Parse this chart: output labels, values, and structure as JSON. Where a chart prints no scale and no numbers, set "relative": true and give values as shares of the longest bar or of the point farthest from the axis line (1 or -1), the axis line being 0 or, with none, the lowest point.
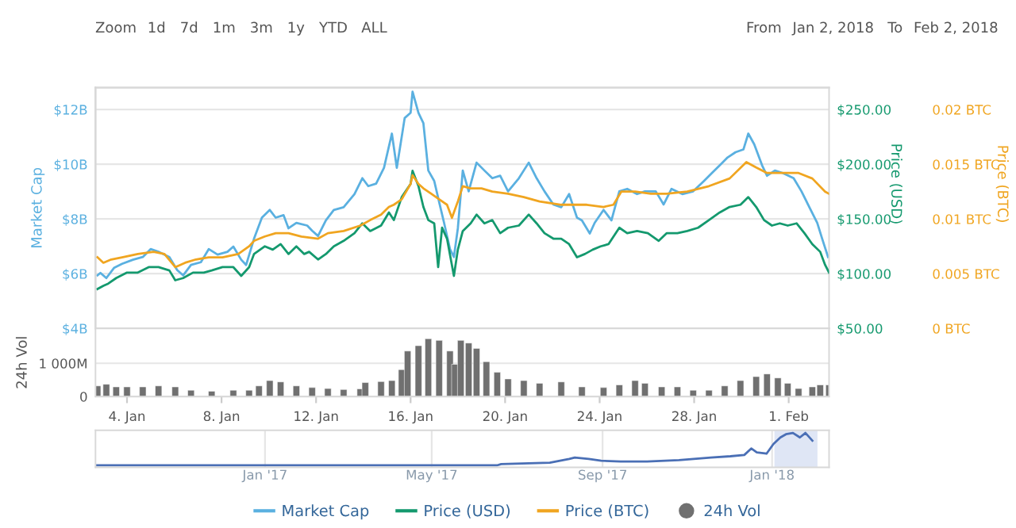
{
  "chart_data": [
    {
      "type": "line",
      "ylabel": "Market Cap",
      "y2label": "Price (USD)",
      "y3label": "Price (BTC)",
      "annotations": [
        "Zoom",
        "1d",
        "7d",
        "1m",
        "3m",
        "1y",
        "YTD",
        "ALL",
        "From",
        "Jan 2, 2018",
        "To",
        "Feb 2, 2018"
      ],
      "xlim": [
        "2018-01-02T16:00",
        "2018-02-02T17:00"
      ],
      "tick_labels": "y",
      "ylim": [
        4,
        12.8
      ],
      "yticks": [
        {
          "value": 4,
          "label": "$4B"
        },
        {
          "value": 6,
          "label": "$6B"
        },
        {
          "value": 8,
          "label": "$8B"
        },
        {
          "value": 10,
          "label": "$10B"
        },
        {
          "value": 12,
          "label": "$12B"
        }
      ],
      "y2lim": [
        50,
        270
      ],
      "y2ticks": [
        {
          "value": 50,
          "label": "$50.00"
        },
        {
          "value": 100,
          "label": "$100.00"
        },
        {
          "value": 150,
          "label": "$150.00"
        },
        {
          "value": 200,
          "label": "$200.00"
        },
        {
          "value": 250,
          "label": "$250.00"
        }
      ],
      "y3lim": [
        0,
        0.022
      ],
      "y3ticks": [
        {
          "value": 0,
          "label": "0 BTC"
        },
        {
          "value": 0.005,
          "label": "0.005 BTC"
        },
        {
          "value": 0.01,
          "label": "0.01 BTC"
        },
        {
          "value": 0.015,
          "label": "0.015 BTC"
        },
        {
          "value": 0.02,
          "label": "0.02 BTC"
        }
      ],
      "grid": "y",
      "legend": "bottom",
      "series": [
        {
          "name": "Market Cap",
          "color": "#5ab0e0",
          "axis": "y",
          "x": [
            "2018-01-02T18:00",
            "2018-01-02T21:00",
            "2018-01-03T03:00",
            "2018-01-03T11:00",
            "2018-01-03T19:00",
            "2018-01-04T06:00",
            "2018-01-04T16:00",
            "2018-01-05T00:00",
            "2018-01-05T08:00",
            "2018-01-05T19:00",
            "2018-01-06T03:00",
            "2018-01-06T09:00",
            "2018-01-06T17:00",
            "2018-01-07T03:00",
            "2018-01-07T11:00",
            "2018-01-07T20:00",
            "2018-01-08T06:00",
            "2018-01-08T12:00",
            "2018-01-08T20:00",
            "2018-01-09T01:00",
            "2018-01-09T09:00",
            "2018-01-09T17:00",
            "2018-01-10T01:00",
            "2018-01-10T07:00",
            "2018-01-10T15:00",
            "2018-01-10T20:00",
            "2018-01-11T04:00",
            "2018-01-11T15:00",
            "2018-01-11T20:00",
            "2018-01-12T02:00",
            "2018-01-12T10:00",
            "2018-01-12T18:00",
            "2018-01-13T04:00",
            "2018-01-13T15:00",
            "2018-01-13T23:00",
            "2018-01-14T05:00",
            "2018-01-14T13:00",
            "2018-01-14T21:00",
            "2018-01-15T05:00",
            "2018-01-15T10:00",
            "2018-01-15T18:00",
            "2018-01-16T00:00",
            "2018-01-16T02:00",
            "2018-01-16T08:00",
            "2018-01-16T13:00",
            "2018-01-16T18:00",
            "2018-01-17T00:00",
            "2018-01-17T05:00",
            "2018-01-17T10:00",
            "2018-01-17T16:00",
            "2018-01-17T20:00",
            "2018-01-18T00:00",
            "2018-01-18T05:00",
            "2018-01-18T11:00",
            "2018-01-18T19:00",
            "2018-01-19T03:00",
            "2018-01-19T11:00",
            "2018-01-19T19:00",
            "2018-01-20T03:00",
            "2018-01-20T14:00",
            "2018-01-21T00:00",
            "2018-01-21T08:00",
            "2018-01-21T16:00",
            "2018-01-22T01:00",
            "2018-01-22T09:00",
            "2018-01-22T17:00",
            "2018-01-23T01:00",
            "2018-01-23T06:00",
            "2018-01-23T14:00",
            "2018-01-23T19:00",
            "2018-01-24T04:00",
            "2018-01-24T12:00",
            "2018-01-24T20:00",
            "2018-01-25T04:00",
            "2018-01-25T14:00",
            "2018-01-25T22:00",
            "2018-01-26T09:00",
            "2018-01-26T17:00",
            "2018-01-27T01:00",
            "2018-01-27T12:00",
            "2018-01-27T23:00",
            "2018-01-28T10:00",
            "2018-01-28T18:00",
            "2018-01-29T02:00",
            "2018-01-29T10:00",
            "2018-01-29T18:00",
            "2018-01-30T02:00",
            "2018-01-30T07:00",
            "2018-01-30T13:00",
            "2018-01-30T21:00",
            "2018-01-31T02:00",
            "2018-01-31T10:00",
            "2018-01-31T18:00",
            "2018-02-01T05:00",
            "2018-02-01T13:00",
            "2018-02-01T21:00",
            "2018-02-02T05:00",
            "2018-02-02T10:00",
            "2018-02-02T16:00"
          ],
          "values": [
            5.94,
            6.03,
            5.84,
            6.22,
            6.36,
            6.51,
            6.61,
            6.9,
            6.8,
            6.61,
            6.13,
            5.94,
            6.32,
            6.42,
            6.9,
            6.7,
            6.8,
            6.99,
            6.51,
            6.32,
            7.28,
            8.05,
            8.33,
            8.05,
            8.14,
            7.66,
            7.86,
            7.76,
            7.57,
            7.38,
            7.95,
            8.33,
            8.43,
            8.91,
            9.49,
            9.2,
            9.29,
            9.87,
            11.12,
            9.87,
            11.69,
            11.88,
            12.65,
            11.88,
            11.5,
            9.77,
            9.39,
            8.62,
            7.86,
            6.9,
            6.61,
            7.66,
            9.77,
            9.01,
            10.06,
            9.77,
            9.49,
            9.58,
            9.01,
            9.49,
            10.06,
            9.49,
            9.01,
            8.53,
            8.43,
            8.91,
            8.05,
            7.95,
            7.47,
            7.86,
            8.33,
            7.95,
            9.01,
            9.1,
            8.91,
            9.01,
            9.01,
            8.53,
            9.1,
            8.91,
            9.01,
            9.39,
            9.68,
            9.96,
            10.25,
            10.44,
            10.54,
            11.12,
            10.73,
            9.96,
            9.58,
            9.77,
            9.68,
            9.49,
            9.01,
            8.43,
            7.86,
            7.28,
            6.61
          ]
        },
        {
          "name": "Price (USD)",
          "color": "#14996e",
          "axis": "y2",
          "x": [
            "2018-01-02T18:00",
            "2018-01-03T00:00",
            "2018-01-03T05:00",
            "2018-01-03T13:00",
            "2018-01-04T00:00",
            "2018-01-04T11:00",
            "2018-01-04T22:00",
            "2018-01-05T08:00",
            "2018-01-05T19:00",
            "2018-01-06T01:00",
            "2018-01-06T09:00",
            "2018-01-06T19:00",
            "2018-01-07T06:00",
            "2018-01-07T14:00",
            "2018-01-08T01:00",
            "2018-01-08T12:00",
            "2018-01-08T20:00",
            "2018-01-09T04:00",
            "2018-01-09T09:00",
            "2018-01-09T20:00",
            "2018-01-10T04:00",
            "2018-01-10T12:00",
            "2018-01-10T20:00",
            "2018-01-11T04:00",
            "2018-01-11T12:00",
            "2018-01-11T17:00",
            "2018-01-12T02:00",
            "2018-01-12T10:00",
            "2018-01-12T18:00",
            "2018-01-13T04:00",
            "2018-01-13T15:00",
            "2018-01-13T23:00",
            "2018-01-14T07:00",
            "2018-01-14T18:00",
            "2018-01-15T02:00",
            "2018-01-15T07:00",
            "2018-01-15T15:00",
            "2018-01-16T00:00",
            "2018-01-16T02:00",
            "2018-01-16T08:00",
            "2018-01-16T13:00",
            "2018-01-16T18:00",
            "2018-01-17T00:00",
            "2018-01-17T04:00",
            "2018-01-17T08:00",
            "2018-01-17T13:00",
            "2018-01-17T20:00",
            "2018-01-18T00:00",
            "2018-01-18T05:00",
            "2018-01-18T13:00",
            "2018-01-18T19:00",
            "2018-01-19T03:00",
            "2018-01-19T11:00",
            "2018-01-19T19:00",
            "2018-01-20T03:00",
            "2018-01-20T14:00",
            "2018-01-21T00:00",
            "2018-01-21T08:00",
            "2018-01-21T16:00",
            "2018-01-22T01:00",
            "2018-01-22T09:00",
            "2018-01-22T17:00",
            "2018-01-23T01:00",
            "2018-01-23T09:00",
            "2018-01-23T17:00",
            "2018-01-24T01:00",
            "2018-01-24T09:00",
            "2018-01-24T20:00",
            "2018-01-25T04:00",
            "2018-01-25T14:00",
            "2018-01-26T01:00",
            "2018-01-26T12:00",
            "2018-01-26T20:00",
            "2018-01-27T07:00",
            "2018-01-27T17:00",
            "2018-01-28T04:00",
            "2018-01-28T15:00",
            "2018-01-29T02:00",
            "2018-01-29T12:00",
            "2018-01-29T23:00",
            "2018-01-30T07:00",
            "2018-01-30T15:00",
            "2018-01-30T23:00",
            "2018-01-31T07:00",
            "2018-01-31T15:00",
            "2018-01-31T23:00",
            "2018-02-01T08:00",
            "2018-02-01T16:00",
            "2018-02-02T00:00",
            "2018-02-02T08:00",
            "2018-02-02T13:00",
            "2018-02-02T17:00"
          ],
          "values": [
            86,
            89,
            91,
            96,
            101,
            101,
            106,
            106,
            103,
            94,
            96,
            101,
            101,
            103,
            106,
            106,
            98,
            106,
            118,
            125,
            122,
            127,
            118,
            125,
            118,
            120,
            113,
            118,
            125,
            130,
            137,
            146,
            139,
            144,
            156,
            149,
            170,
            182,
            194,
            180,
            161,
            149,
            146,
            106,
            142,
            132,
            98,
            122,
            139,
            146,
            154,
            146,
            149,
            137,
            142,
            144,
            154,
            146,
            137,
            132,
            132,
            127,
            115,
            118,
            122,
            125,
            127,
            142,
            137,
            139,
            137,
            130,
            137,
            137,
            139,
            142,
            149,
            156,
            161,
            163,
            170,
            161,
            149,
            144,
            146,
            144,
            146,
            137,
            127,
            120,
            108,
            101
          ]
        },
        {
          "name": "Price (BTC)",
          "color": "#f0a520",
          "axis": "y3",
          "x": [
            "2018-01-02T18:00",
            "2018-01-03T00:00",
            "2018-01-03T08:00",
            "2018-01-03T19:00",
            "2018-01-04T11:00",
            "2018-01-05T03:00",
            "2018-01-05T14:00",
            "2018-01-06T01:00",
            "2018-01-06T11:00",
            "2018-01-06T22:00",
            "2018-01-07T11:00",
            "2018-01-08T01:00",
            "2018-01-08T17:00",
            "2018-01-09T04:00",
            "2018-01-09T09:00",
            "2018-01-09T20:00",
            "2018-01-10T07:00",
            "2018-01-10T20:00",
            "2018-01-11T09:00",
            "2018-01-12T02:00",
            "2018-01-12T12:00",
            "2018-01-13T04:00",
            "2018-01-13T21:00",
            "2018-01-14T07:00",
            "2018-01-14T18:00",
            "2018-01-15T02:00",
            "2018-01-15T07:00",
            "2018-01-15T15:00",
            "2018-01-16T00:00",
            "2018-01-16T02:00",
            "2018-01-16T08:00",
            "2018-01-16T13:00",
            "2018-01-16T21:00",
            "2018-01-17T05:00",
            "2018-01-17T13:00",
            "2018-01-17T18:00",
            "2018-01-18T00:00",
            "2018-01-18T05:00",
            "2018-01-18T13:00",
            "2018-01-19T00:00",
            "2018-01-19T11:00",
            "2018-01-20T03:00",
            "2018-01-20T19:00",
            "2018-01-21T11:00",
            "2018-01-22T09:00",
            "2018-01-23T11:00",
            "2018-01-24T04:00",
            "2018-01-24T14:00",
            "2018-01-24T22:00",
            "2018-01-25T12:00",
            "2018-01-26T04:00",
            "2018-01-26T20:00",
            "2018-01-27T17:00",
            "2018-01-28T15:00",
            "2018-01-29T12:00",
            "2018-01-30T05:00",
            "2018-01-30T15:00",
            "2018-01-31T02:00",
            "2018-01-31T18:00",
            "2018-02-01T10:00",
            "2018-02-02T00:00",
            "2018-02-02T13:00",
            "2018-02-02T17:00"
          ],
          "values": [
            0.0065,
            0.006,
            0.0063,
            0.0065,
            0.0068,
            0.007,
            0.0068,
            0.0056,
            0.006,
            0.0063,
            0.0065,
            0.0065,
            0.0068,
            0.0075,
            0.008,
            0.0084,
            0.0087,
            0.0087,
            0.0084,
            0.0082,
            0.0087,
            0.0089,
            0.0094,
            0.0099,
            0.0104,
            0.0111,
            0.0113,
            0.0118,
            0.0132,
            0.014,
            0.0132,
            0.0128,
            0.0123,
            0.0118,
            0.0113,
            0.0101,
            0.0116,
            0.013,
            0.0128,
            0.0128,
            0.0125,
            0.0123,
            0.012,
            0.0116,
            0.0113,
            0.0113,
            0.0111,
            0.0113,
            0.0125,
            0.0125,
            0.0123,
            0.0123,
            0.0125,
            0.013,
            0.0137,
            0.0152,
            0.0147,
            0.0142,
            0.0142,
            0.0142,
            0.0137,
            0.0125,
            0.0123
          ]
        }
      ]
    },
    {
      "type": "bar",
      "ylabel": "24h Vol",
      "xlim": [
        "2018-01-02T16:00",
        "2018-02-02T17:00"
      ],
      "xticks": [
        {
          "value": "2018-01-04",
          "label": "4. Jan"
        },
        {
          "value": "2018-01-08",
          "label": "8. Jan"
        },
        {
          "value": "2018-01-12",
          "label": "12. Jan"
        },
        {
          "value": "2018-01-16",
          "label": "16. Jan"
        },
        {
          "value": "2018-01-20",
          "label": "20. Jan"
        },
        {
          "value": "2018-01-24",
          "label": "24. Jan"
        },
        {
          "value": "2018-01-28",
          "label": "28. Jan"
        },
        {
          "value": "2018-02-01",
          "label": "1. Feb"
        }
      ],
      "ylim": [
        0,
        2050
      ],
      "yticks": [
        {
          "value": 0,
          "label": "0"
        },
        {
          "value": 1000,
          "label": "1 000M"
        }
      ],
      "grid": "y",
      "legend": "bottom",
      "series": [
        {
          "name": "24h Vol",
          "color": "#707070",
          "x": [
            "2018-01-02T18:00",
            "2018-01-03T03:00",
            "2018-01-03T13:00",
            "2018-01-04T00:00",
            "2018-01-04T16:00",
            "2018-01-05T08:00",
            "2018-01-06T01:00",
            "2018-01-06T17:00",
            "2018-01-07T14:00",
            "2018-01-08T12:00",
            "2018-01-09T04:00",
            "2018-01-09T14:00",
            "2018-01-10T01:00",
            "2018-01-10T12:00",
            "2018-01-11T04:00",
            "2018-01-11T20:00",
            "2018-01-12T12:00",
            "2018-01-13T04:00",
            "2018-01-13T21:00",
            "2018-01-14T02:00",
            "2018-01-14T18:00",
            "2018-01-15T05:00",
            "2018-01-15T15:00",
            "2018-01-15T21:00",
            "2018-01-16T08:00",
            "2018-01-16T18:00",
            "2018-01-17T05:00",
            "2018-01-17T16:00",
            "2018-01-17T21:00",
            "2018-01-18T03:00",
            "2018-01-18T11:00",
            "2018-01-18T19:00",
            "2018-01-19T05:00",
            "2018-01-19T16:00",
            "2018-01-20T03:00",
            "2018-01-20T19:00",
            "2018-01-21T11:00",
            "2018-01-22T09:00",
            "2018-01-23T06:00",
            "2018-01-24T04:00",
            "2018-01-24T20:00",
            "2018-01-25T12:00",
            "2018-01-25T22:00",
            "2018-01-26T15:00",
            "2018-01-27T07:00",
            "2018-01-27T23:00",
            "2018-01-28T15:00",
            "2018-01-29T07:00",
            "2018-01-29T23:00",
            "2018-01-30T15:00",
            "2018-01-31T02:00",
            "2018-01-31T13:00",
            "2018-01-31T23:00",
            "2018-02-01T10:00",
            "2018-02-02T00:00",
            "2018-02-02T08:00",
            "2018-02-02T17:00"
          ],
          "values": [
            320,
            370,
            290,
            290,
            290,
            320,
            290,
            190,
            160,
            190,
            190,
            320,
            480,
            440,
            320,
            270,
            240,
            210,
            230,
            420,
            450,
            480,
            810,
            1370,
            1530,
            1740,
            1690,
            1370,
            970,
            1690,
            1610,
            1450,
            1050,
            730,
            530,
            480,
            400,
            440,
            290,
            270,
            350,
            480,
            400,
            290,
            290,
            190,
            190,
            320,
            480,
            600,
            680,
            560,
            400,
            240,
            290,
            350,
            350
          ]
        }
      ]
    },
    {
      "type": "line",
      "relative": true,
      "xlim": [
        "2016-09-01",
        "2018-02-11"
      ],
      "xticks": [
        {
          "value": "2017-01-01",
          "label": "Jan '17"
        },
        {
          "value": "2017-05-01",
          "label": "May '17"
        },
        {
          "value": "2017-09-01",
          "label": "Sep '17"
        },
        {
          "value": "2018-01-01",
          "label": "Jan '18"
        }
      ],
      "grid": "x",
      "bands": [
        {
          "axis": "x",
          "from": "2018-01-02T16:00",
          "to": "2018-02-02T16:00",
          "color": "#c9d6ee"
        }
      ],
      "series": [
        {
          "color": "#4a6fb5",
          "x": [
            "2016-09-01",
            "2017-06-17",
            "2017-06-20",
            "2017-07-25",
            "2017-08-08",
            "2017-08-12",
            "2017-08-22",
            "2017-08-31",
            "2017-09-14",
            "2017-10-03",
            "2017-10-26",
            "2017-11-18",
            "2017-12-02",
            "2017-12-12",
            "2017-12-17",
            "2017-12-21",
            "2017-12-28",
            "2018-01-02",
            "2018-01-07",
            "2018-01-11",
            "2018-01-16",
            "2018-01-21",
            "2018-01-25",
            "2018-01-30"
          ],
          "values": [
            0.0,
            0.0,
            0.04,
            0.08,
            0.2,
            0.24,
            0.2,
            0.14,
            0.12,
            0.12,
            0.16,
            0.24,
            0.28,
            0.32,
            0.52,
            0.4,
            0.36,
            0.66,
            0.86,
            0.96,
            1.0,
            0.86,
            1.0,
            0.76
          ]
        }
      ]
    }
  ]
}
